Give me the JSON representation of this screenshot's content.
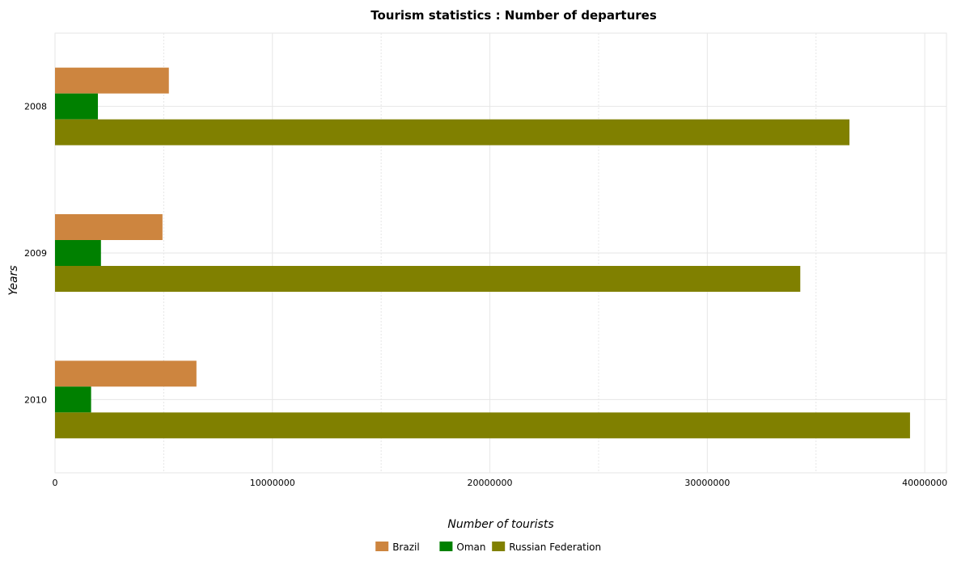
{
  "chart_data": {
    "type": "bar",
    "orientation": "horizontal",
    "title": "Tourism statistics : Number of departures",
    "xlabel": "Number of tourists",
    "ylabel": "Years",
    "categories": [
      "2008",
      "2009",
      "2010"
    ],
    "xlim": [
      0,
      41000000
    ],
    "x_ticks": [
      0,
      10000000,
      20000000,
      30000000,
      40000000
    ],
    "x_tick_labels": [
      "0",
      "10000000",
      "20000000",
      "30000000",
      "40000000"
    ],
    "grid": true,
    "legend_position": "bottom-center",
    "series": [
      {
        "name": "Brazil",
        "color": "#cd853f",
        "values": [
          5236000,
          4943000,
          6505000
        ]
      },
      {
        "name": "Oman",
        "color": "#008000",
        "values": [
          1973000,
          2113000,
          1660000
        ]
      },
      {
        "name": "Russian Federation",
        "color": "#808000",
        "values": [
          36538000,
          34276000,
          39323000
        ]
      }
    ]
  }
}
